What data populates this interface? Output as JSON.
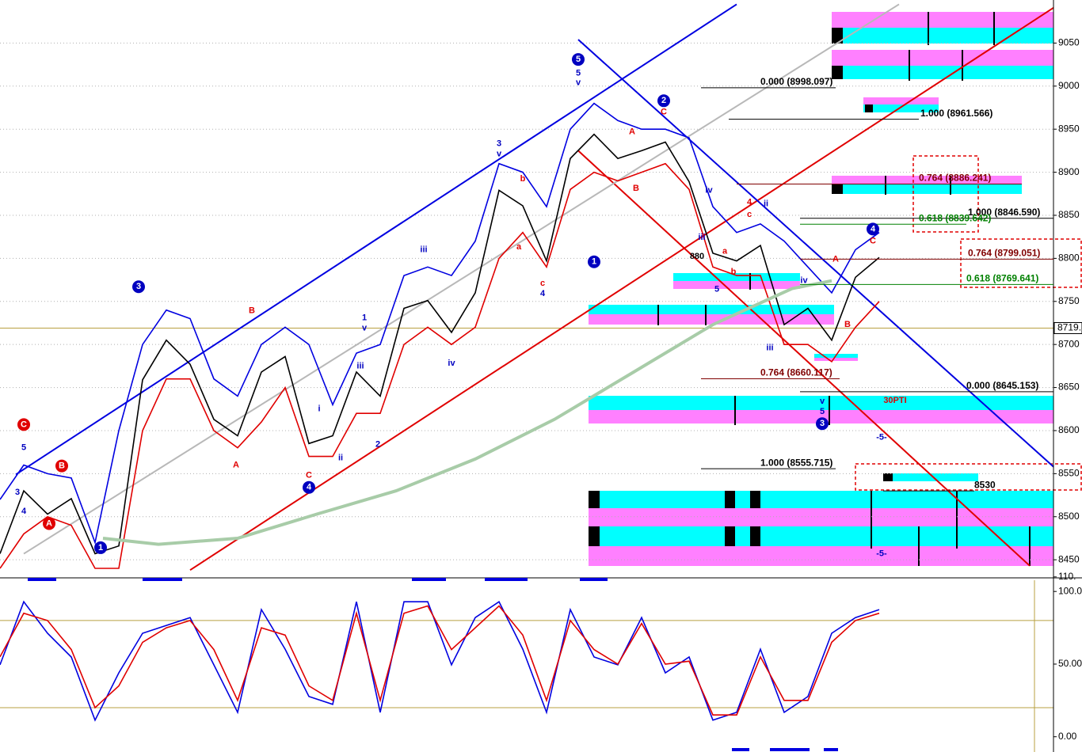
{
  "chart_data": [
    {
      "type": "line",
      "x": [
        0,
        3,
        6,
        9,
        12,
        15,
        18,
        21,
        24,
        27,
        30,
        33,
        36,
        39,
        42,
        45,
        48,
        51,
        54,
        57,
        60,
        63,
        66,
        69,
        72,
        75,
        78,
        81,
        84,
        87,
        90,
        93,
        96,
        99,
        102,
        105,
        108,
        111
      ],
      "xlim": [
        0,
        133
      ],
      "ylim": [
        8429,
        9100
      ],
      "yticks": [
        8450,
        8500,
        8550,
        8600,
        8650,
        8700,
        8750,
        8800,
        8850,
        8900,
        8950,
        9000,
        9050
      ],
      "grid": true,
      "series": [
        {
          "color": "#000000",
          "values": [
            8457,
            8530,
            8503,
            8521,
            8457,
            8466,
            8659,
            8705,
            8677,
            8613,
            8594,
            8668,
            8686,
            8585,
            8594,
            8668,
            8640,
            8742,
            8751,
            8714,
            8760,
            8879,
            8861,
            8797,
            8916,
            8944,
            8916,
            8925,
            8935,
            8889,
            8806,
            8797,
            8815,
            8723,
            8742,
            8705,
            8778,
            8801
          ]
        },
        {
          "color": "#0000e0",
          "values": [
            8520,
            8560,
            8550,
            8545,
            8470,
            8600,
            8700,
            8740,
            8730,
            8660,
            8640,
            8700,
            8720,
            8700,
            8630,
            8690,
            8700,
            8780,
            8790,
            8780,
            8820,
            8910,
            8900,
            8860,
            8950,
            8980,
            8960,
            8950,
            8950,
            8940,
            8860,
            8830,
            8840,
            8820,
            8790,
            8760,
            8810,
            8830
          ]
        },
        {
          "color": "#e00000",
          "values": [
            8440,
            8480,
            8500,
            8490,
            8440,
            8440,
            8600,
            8660,
            8660,
            8600,
            8580,
            8610,
            8650,
            8570,
            8570,
            8620,
            8620,
            8700,
            8720,
            8700,
            8720,
            8800,
            8830,
            8790,
            8880,
            8900,
            8890,
            8900,
            8910,
            8880,
            8790,
            8780,
            8780,
            8700,
            8700,
            8680,
            8720,
            8750
          ]
        },
        {
          "color": "#a8cca8",
          "x": [
            13,
            20,
            30,
            40,
            50,
            60,
            70,
            80,
            90,
            100,
            105
          ],
          "values": [
            8475,
            8468,
            8475,
            8503,
            8530,
            8567,
            8613,
            8668,
            8723,
            8765,
            8774
          ]
        }
      ],
      "trendlines": [
        {
          "color": "#0000e0",
          "x": [
            2,
            93
          ],
          "values": [
            8549,
            9095
          ]
        },
        {
          "color": "#e00000",
          "x": [
            24,
            133
          ],
          "values": [
            8438,
            9091
          ]
        },
        {
          "color": "#0000e0",
          "x": [
            73,
            133
          ],
          "values": [
            9054,
            8558
          ]
        },
        {
          "color": "#e00000",
          "x": [
            73,
            130
          ],
          "values": [
            8925,
            8443
          ]
        },
        {
          "color": "#b8b8b8",
          "x": [
            3,
            113.5
          ],
          "values": [
            8457,
            9095
          ]
        }
      ],
      "levels": [
        {
          "value": 8719,
          "label": "8719."
        }
      ],
      "fib_levels": [
        {
          "text": "0.000 (8998.097)",
          "value": 8998.097,
          "color": "#000000"
        },
        {
          "text": "1.000 (8961.566)",
          "value": 8961.566,
          "color": "#000000"
        },
        {
          "text": "0.764 (8886.241)",
          "value": 8886.241,
          "color": "#800000"
        },
        {
          "text": "1.000 (8846.590)",
          "value": 8846.59,
          "color": "#000000"
        },
        {
          "text": "0.618 (8839.642)",
          "value": 8839.642,
          "color": "#008000"
        },
        {
          "text": "0.764 (8799.051)",
          "value": 8799.051,
          "color": "#800000"
        },
        {
          "text": "0.618 (8769.641)",
          "value": 8769.641,
          "color": "#008000"
        },
        {
          "text": "0.764 (8660.117)",
          "value": 8660.117,
          "color": "#800000"
        },
        {
          "text": "0.000 (8645.153)",
          "value": 8645.153,
          "color": "#000000"
        },
        {
          "text": "1.000 (8555.715)",
          "value": 8555.715,
          "color": "#000000"
        },
        {
          "text": "8530",
          "value": 8530,
          "color": "#000000"
        }
      ],
      "labels": [
        {
          "text": "5",
          "x": 3,
          "y": 8580,
          "color": "#0000c0"
        },
        {
          "text": "3",
          "x": 2.2,
          "y": 8528,
          "color": "#0000c0"
        },
        {
          "text": "4",
          "x": 3,
          "y": 8506,
          "color": "#0000c0"
        },
        {
          "text": "C",
          "x": 3,
          "y": 8607,
          "color": "#e00000",
          "circle": true
        },
        {
          "text": "B",
          "x": 7.8,
          "y": 8559,
          "color": "#e00000",
          "circle": true
        },
        {
          "text": "A",
          "x": 6.2,
          "y": 8492,
          "color": "#e00000",
          "circle": true
        },
        {
          "text": "1",
          "x": 12.7,
          "y": 8464,
          "color": "#0000c0",
          "circle": true
        },
        {
          "text": "3",
          "x": 17.5,
          "y": 8767,
          "color": "#0000c0",
          "circle": true
        },
        {
          "text": "B",
          "x": 31.8,
          "y": 8739,
          "color": "#e00000"
        },
        {
          "text": "A",
          "x": 29.8,
          "y": 8560,
          "color": "#e00000"
        },
        {
          "text": "C",
          "x": 39,
          "y": 8548,
          "color": "#e00000"
        },
        {
          "text": "4",
          "x": 39,
          "y": 8534,
          "color": "#0000c0",
          "circle": true
        },
        {
          "text": "i",
          "x": 40.3,
          "y": 8625,
          "color": "#0000c0"
        },
        {
          "text": "ii",
          "x": 43,
          "y": 8568,
          "color": "#0000c0"
        },
        {
          "text": "iii",
          "x": 45.5,
          "y": 8675,
          "color": "#0000c0"
        },
        {
          "text": "1",
          "x": 46,
          "y": 8731,
          "color": "#0000c0"
        },
        {
          "text": "v",
          "x": 46,
          "y": 8719,
          "color": "#0000c0"
        },
        {
          "text": "2",
          "x": 47.7,
          "y": 8584,
          "color": "#0000c0"
        },
        {
          "text": "iii",
          "x": 53.5,
          "y": 8810,
          "color": "#0000c0"
        },
        {
          "text": "iv",
          "x": 57,
          "y": 8678,
          "color": "#0000c0"
        },
        {
          "text": "3",
          "x": 63,
          "y": 8933,
          "color": "#0000c0"
        },
        {
          "text": "v",
          "x": 63,
          "y": 8921,
          "color": "#0000c0"
        },
        {
          "text": "b",
          "x": 66,
          "y": 8892,
          "color": "#e00000"
        },
        {
          "text": "a",
          "x": 65.5,
          "y": 8813,
          "color": "#e00000"
        },
        {
          "text": "c",
          "x": 68.5,
          "y": 8771,
          "color": "#e00000"
        },
        {
          "text": "4",
          "x": 68.5,
          "y": 8759,
          "color": "#0000c0"
        },
        {
          "text": "5",
          "x": 73,
          "y": 9031,
          "color": "#0000c0",
          "circle": true
        },
        {
          "text": "5",
          "x": 73,
          "y": 9015,
          "color": "#0000c0"
        },
        {
          "text": "v",
          "x": 73,
          "y": 9004,
          "color": "#0000c0"
        },
        {
          "text": "1",
          "x": 75,
          "y": 8796,
          "color": "#0000c0",
          "circle": true
        },
        {
          "text": "2",
          "x": 83.8,
          "y": 8983,
          "color": "#0000c0",
          "circle": true
        },
        {
          "text": "C",
          "x": 83.8,
          "y": 8970,
          "color": "#e00000"
        },
        {
          "text": "A",
          "x": 79.8,
          "y": 8947,
          "color": "#e00000"
        },
        {
          "text": "B",
          "x": 80.3,
          "y": 8881,
          "color": "#e00000"
        },
        {
          "text": "c",
          "x": 94.6,
          "y": 8851,
          "color": "#e00000"
        },
        {
          "text": "4",
          "x": 94.6,
          "y": 8865,
          "color": "#e00000"
        },
        {
          "text": "iii",
          "x": 88.6,
          "y": 8824,
          "color": "#0000c0"
        },
        {
          "text": "iv",
          "x": 89.5,
          "y": 8879,
          "color": "#0000c0"
        },
        {
          "text": "ii",
          "x": 96.7,
          "y": 8863,
          "color": "#0000c0"
        },
        {
          "text": "a",
          "x": 91.5,
          "y": 8808,
          "color": "#e00000"
        },
        {
          "text": "b",
          "x": 92.6,
          "y": 8784,
          "color": "#e00000"
        },
        {
          "text": "5",
          "x": 90.5,
          "y": 8764,
          "color": "#0000c0"
        },
        {
          "text": "iv",
          "x": 101.5,
          "y": 8774,
          "color": "#0000c0"
        },
        {
          "text": "iii",
          "x": 97.2,
          "y": 8696,
          "color": "#0000c0"
        },
        {
          "text": "A",
          "x": 105.5,
          "y": 8799,
          "color": "#e00000"
        },
        {
          "text": "B",
          "x": 107,
          "y": 8723,
          "color": "#e00000"
        },
        {
          "text": "4",
          "x": 110.2,
          "y": 8834,
          "color": "#0000c0",
          "circle": true
        },
        {
          "text": "C",
          "x": 110.2,
          "y": 8820,
          "color": "#e00000"
        },
        {
          "text": "v",
          "x": 103.8,
          "y": 8634,
          "color": "#0000c0"
        },
        {
          "text": "5",
          "x": 103.8,
          "y": 8622,
          "color": "#0000c0"
        },
        {
          "text": "3",
          "x": 103.8,
          "y": 8608,
          "color": "#0000c0",
          "circle": true
        },
        {
          "text": "-5-",
          "x": 111.3,
          "y": 8592,
          "color": "#0000c0"
        },
        {
          "text": "-5-",
          "x": 111.3,
          "y": 8457,
          "color": "#0000c0"
        },
        {
          "text": "30PTI",
          "x": 113,
          "y": 8635,
          "color": "#e00000"
        },
        {
          "text": "880",
          "x": 88,
          "y": 8802,
          "color": "#000000"
        }
      ]
    },
    {
      "type": "line",
      "x": [
        0,
        3,
        6,
        9,
        12,
        15,
        18,
        21,
        24,
        27,
        30,
        33,
        36,
        39,
        42,
        45,
        48,
        51,
        54,
        57,
        60,
        63,
        66,
        69,
        72,
        75,
        78,
        81,
        84,
        87,
        90,
        93,
        96,
        99,
        102,
        105,
        108,
        111
      ],
      "xlim": [
        0,
        133
      ],
      "ylim": [
        -10.5,
        111
      ],
      "yticks": [
        {
          "value": 110,
          "label": "110."
        },
        {
          "value": 100,
          "label": "100.0"
        },
        {
          "value": 50,
          "label": "50.00"
        },
        {
          "value": 0,
          "label": "0.00"
        }
      ],
      "levels": [
        80,
        20
      ],
      "series": [
        {
          "color": "#0000e0",
          "values": [
            49.5,
            92.9,
            71.2,
            54.9,
            11.4,
            44,
            71.2,
            76.6,
            82,
            49.5,
            16.8,
            87.5,
            60.3,
            27.7,
            22.3,
            92.9,
            16.8,
            92.9,
            92.9,
            49.5,
            82,
            92.9,
            60.3,
            16.8,
            87.5,
            54.9,
            49.5,
            82,
            44,
            54.9,
            11.4,
            16.8,
            60.3,
            16.8,
            27.7,
            71.2,
            82,
            87.5
          ]
        },
        {
          "color": "#e00000",
          "values": [
            55,
            85,
            80,
            60,
            20,
            35,
            65,
            75,
            80,
            60,
            25,
            75,
            70,
            35,
            25,
            85,
            25,
            85,
            90,
            60,
            75,
            90,
            70,
            25,
            80,
            60,
            50,
            78,
            50,
            52,
            15,
            15,
            55,
            25,
            25,
            65,
            80,
            85
          ]
        }
      ]
    }
  ]
}
